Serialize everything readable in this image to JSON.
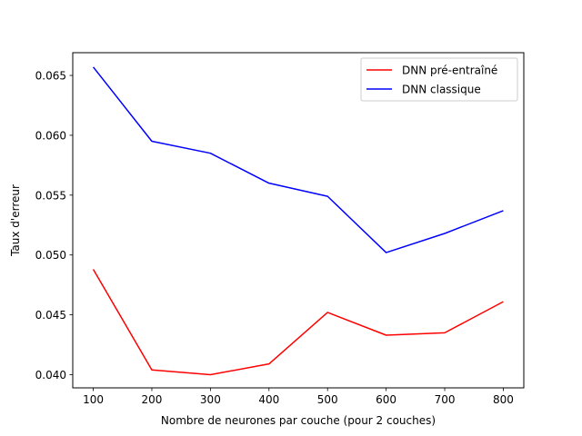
{
  "chart_data": {
    "type": "line",
    "title": "",
    "xlabel": "Nombre de neurones par couche (pour 2 couches)",
    "ylabel": "Taux d'erreur",
    "x": [
      100,
      200,
      300,
      400,
      500,
      600,
      700,
      800
    ],
    "xlim": [
      65,
      835
    ],
    "ylim": [
      0.0389,
      0.0669
    ],
    "xticks": [
      100,
      200,
      300,
      400,
      500,
      600,
      700,
      800
    ],
    "xtick_labels": [
      "100",
      "200",
      "300",
      "400",
      "500",
      "600",
      "700",
      "800"
    ],
    "yticks": [
      0.04,
      0.045,
      0.05,
      0.055,
      0.06,
      0.065
    ],
    "ytick_labels": [
      "0.040",
      "0.045",
      "0.050",
      "0.055",
      "0.060",
      "0.065"
    ],
    "grid": false,
    "legend_position": "top-right",
    "series": [
      {
        "name": "DNN pré-entraîné",
        "color": "#ff0000",
        "values": [
          0.0488,
          0.0404,
          0.04,
          0.0409,
          0.0452,
          0.0433,
          0.0435,
          0.0461
        ]
      },
      {
        "name": "DNN classique",
        "color": "#0000ff",
        "values": [
          0.0657,
          0.0595,
          0.0585,
          0.056,
          0.0549,
          0.0502,
          0.0518,
          0.0537
        ]
      }
    ]
  }
}
